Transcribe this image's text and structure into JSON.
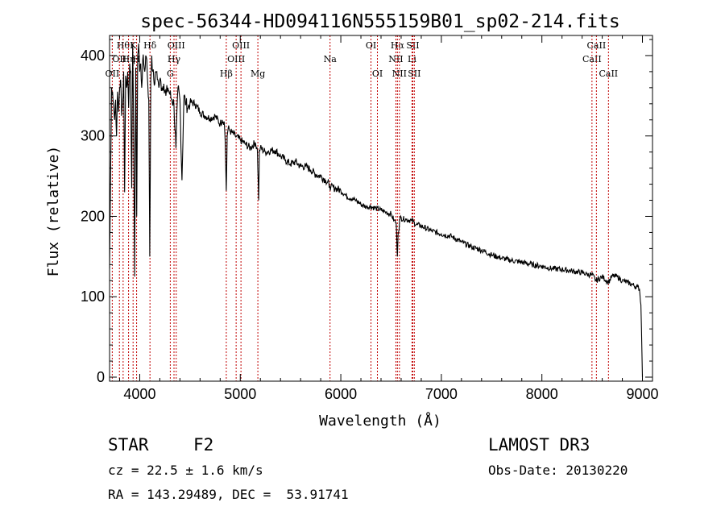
{
  "chart_data": {
    "type": "line",
    "title": "spec-56344-HD094116N555159B01_sp02-214.fits",
    "xlabel": "Wavelength (Å)",
    "ylabel": "Flux (relative)",
    "xlim": [
      3700,
      9100
    ],
    "ylim": [
      -5,
      425
    ],
    "xticks": [
      4000,
      5000,
      6000,
      7000,
      8000,
      9000
    ],
    "yticks": [
      0,
      100,
      200,
      300,
      400
    ],
    "series": [
      {
        "name": "flux",
        "x": [
          3700,
          3710,
          3720,
          3730,
          3740,
          3750,
          3760,
          3770,
          3780,
          3790,
          3800,
          3810,
          3820,
          3830,
          3840,
          3850,
          3860,
          3870,
          3880,
          3890,
          3900,
          3910,
          3920,
          3930,
          3940,
          3950,
          3960,
          3970,
          3980,
          3990,
          4000,
          4010,
          4020,
          4030,
          4040,
          4050,
          4060,
          4070,
          4080,
          4090,
          4100,
          4110,
          4120,
          4130,
          4140,
          4150,
          4160,
          4170,
          4180,
          4190,
          4200,
          4220,
          4240,
          4260,
          4280,
          4300,
          4320,
          4340,
          4360,
          4380,
          4400,
          4420,
          4440,
          4460,
          4480,
          4500,
          4550,
          4600,
          4650,
          4700,
          4750,
          4800,
          4820,
          4840,
          4850,
          4861,
          4870,
          4880,
          4900,
          4950,
          5000,
          5050,
          5100,
          5150,
          5170,
          5183,
          5190,
          5200,
          5250,
          5300,
          5350,
          5400,
          5450,
          5500,
          5550,
          5600,
          5650,
          5700,
          5750,
          5800,
          5850,
          5890,
          5900,
          5950,
          6000,
          6050,
          6100,
          6150,
          6200,
          6250,
          6300,
          6350,
          6400,
          6450,
          6500,
          6530,
          6550,
          6563,
          6570,
          6590,
          6650,
          6700,
          6750,
          6800,
          6900,
          7000,
          7100,
          7200,
          7300,
          7400,
          7500,
          7600,
          7700,
          7800,
          7900,
          8000,
          8100,
          8200,
          8300,
          8400,
          8450,
          8500,
          8540,
          8600,
          8662,
          8700,
          8750,
          8800,
          8850,
          8900,
          8950,
          8970,
          8985,
          8995,
          9000
        ],
        "y": [
          135,
          245,
          360,
          355,
          340,
          320,
          345,
          300,
          355,
          330,
          360,
          370,
          325,
          340,
          380,
          230,
          375,
          360,
          380,
          335,
          390,
          380,
          235,
          415,
          300,
          125,
          385,
          200,
          400,
          415,
          380,
          390,
          360,
          395,
          390,
          380,
          400,
          395,
          365,
          345,
          150,
          370,
          400,
          380,
          370,
          365,
          380,
          380,
          370,
          360,
          370,
          360,
          365,
          350,
          360,
          352,
          345,
          340,
          285,
          360,
          345,
          245,
          350,
          340,
          335,
          342,
          340,
          330,
          325,
          322,
          325,
          315,
          320,
          318,
          295,
          232,
          300,
          310,
          306,
          300,
          295,
          290,
          285,
          292,
          282,
          220,
          282,
          285,
          280,
          282,
          282,
          275,
          270,
          265,
          268,
          262,
          262,
          258,
          252,
          250,
          245,
          238,
          236,
          235,
          232,
          226,
          222,
          220,
          215,
          212,
          212,
          210,
          208,
          205,
          203,
          195,
          192,
          150,
          178,
          198,
          196,
          195,
          190,
          188,
          182,
          178,
          175,
          168,
          162,
          158,
          152,
          148,
          145,
          143,
          140,
          138,
          135,
          134,
          132,
          130,
          128,
          127,
          120,
          125,
          118,
          126,
          125,
          120,
          118,
          115,
          112,
          110,
          90,
          30,
          0
        ]
      }
    ],
    "lines": [
      {
        "x": 3727,
        "label": "OII",
        "row": 2
      },
      {
        "x": 3798,
        "label": "OII",
        "row": 1
      },
      {
        "x": 3835,
        "label": "Hθ",
        "row": 0
      },
      {
        "x": 3889,
        "label": "Hη",
        "row": 1
      },
      {
        "x": 3934,
        "label": "K",
        "row": 0
      },
      {
        "x": 3969,
        "label": "H",
        "row": 1
      },
      {
        "x": 4102,
        "label": "Hδ",
        "row": 0
      },
      {
        "x": 4304,
        "label": "G",
        "row": 2
      },
      {
        "x": 4341,
        "label": "Hγ",
        "row": 1
      },
      {
        "x": 4363,
        "label": "OIII",
        "row": 0
      },
      {
        "x": 4861,
        "label": "Hβ",
        "row": 2
      },
      {
        "x": 4959,
        "label": "OIII",
        "row": 1
      },
      {
        "x": 5007,
        "label": "OIII",
        "row": 0
      },
      {
        "x": 5175,
        "label": "Mg",
        "row": 2
      },
      {
        "x": 5893,
        "label": "Na",
        "row": 1
      },
      {
        "x": 6300,
        "label": "OI",
        "row": 0
      },
      {
        "x": 6364,
        "label": "OI",
        "row": 2
      },
      {
        "x": 6548,
        "label": "NII",
        "row": 1
      },
      {
        "x": 6563,
        "label": "Hα",
        "row": 0
      },
      {
        "x": 6583,
        "label": "NII",
        "row": 2
      },
      {
        "x": 6708,
        "label": "Li",
        "row": 1
      },
      {
        "x": 6716,
        "label": "SII",
        "row": 0
      },
      {
        "x": 6731,
        "label": "SII",
        "row": 2
      },
      {
        "x": 8498,
        "label": "CaII",
        "row": 1
      },
      {
        "x": 8542,
        "label": "CaII",
        "row": 0
      },
      {
        "x": 8662,
        "label": "CaII",
        "row": 2
      }
    ]
  },
  "info": {
    "object_class": "STAR",
    "subclass": "F2",
    "survey": "LAMOST DR3",
    "redshift": "cz = 22.5 ± 1.6 km/s",
    "obs_date": "Obs-Date: 20130220",
    "coords": "RA = 143.29489, DEC =  53.91741"
  }
}
